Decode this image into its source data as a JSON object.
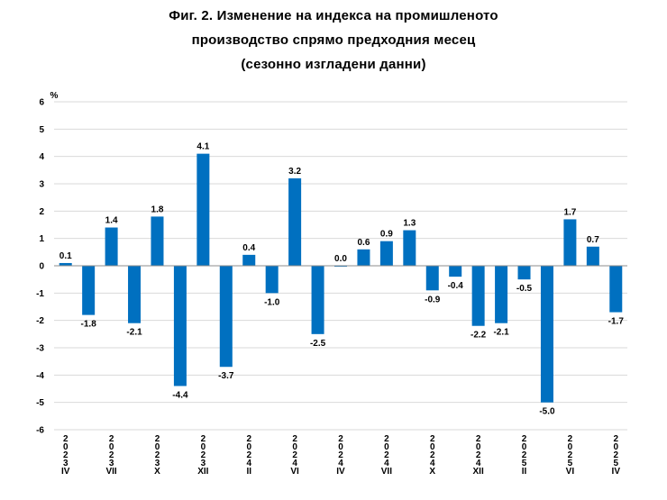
{
  "chart_data": {
    "type": "bar",
    "title_lines": [
      "Фиг. 2. Изменение на индекса на промишленото",
      "производство спрямо предходния месец",
      "(сезонно изгладени данни)"
    ],
    "ylabel": "%",
    "ylim": [
      -6,
      6
    ],
    "yticks": [
      6,
      5,
      4,
      3,
      2,
      1,
      0,
      -1,
      -2,
      -3,
      -4,
      -5,
      -6
    ],
    "values": [
      0.1,
      -1.8,
      1.4,
      -2.1,
      1.8,
      -4.4,
      4.1,
      -3.7,
      0.4,
      -1.0,
      3.2,
      -2.5,
      0.0,
      0.6,
      0.9,
      1.3,
      -0.9,
      -0.4,
      -2.2,
      -2.1,
      -0.5,
      -5.0,
      1.7,
      0.7,
      -1.7
    ],
    "data_labels": [
      "0.1",
      "-1.8",
      "1.4",
      "-2.1",
      "1.8",
      "-4.4",
      "4.1",
      "-3.7",
      "0.4",
      "-1.0",
      "3.2",
      "-2.5",
      "0.0",
      "0.6",
      "0.9",
      "1.3",
      "-0.9",
      "-0.4",
      "-2.2",
      "-2.1",
      "-0.5",
      "-5.0",
      "1.7",
      "0.7",
      "-1.7"
    ],
    "x_tick_labels": [
      {
        "index": 0,
        "lines": [
          "2",
          "0",
          "2",
          "3",
          "IV"
        ]
      },
      {
        "index": 2,
        "lines": [
          "2",
          "0",
          "2",
          "3",
          "VII"
        ]
      },
      {
        "index": 4,
        "lines": [
          "2",
          "0",
          "2",
          "3",
          "X"
        ]
      },
      {
        "index": 6,
        "lines": [
          "2",
          "0",
          "2",
          "3",
          "XII"
        ]
      },
      {
        "index": 8,
        "lines": [
          "2",
          "0",
          "2",
          "4",
          "II"
        ]
      },
      {
        "index": 10,
        "lines": [
          "2",
          "0",
          "2",
          "4",
          "VI"
        ]
      },
      {
        "index": 12,
        "lines": [
          "2",
          "0",
          "2",
          "4",
          "IV"
        ]
      },
      {
        "index": 14,
        "lines": [
          "2",
          "0",
          "2",
          "4",
          "VII"
        ]
      },
      {
        "index": 16,
        "lines": [
          "2",
          "0",
          "2",
          "4",
          "X"
        ]
      },
      {
        "index": 18,
        "lines": [
          "2",
          "0",
          "2",
          "4",
          "XII"
        ]
      },
      {
        "index": 20,
        "lines": [
          "2",
          "0",
          "2",
          "5",
          "II"
        ]
      },
      {
        "index": 22,
        "lines": [
          "2",
          "0",
          "2",
          "5",
          "VI"
        ]
      },
      {
        "index": 24,
        "lines": [
          "2",
          "0",
          "2",
          "5",
          "IV"
        ]
      }
    ],
    "bar_color": "#0070C0",
    "grid": true,
    "legend": "none"
  }
}
